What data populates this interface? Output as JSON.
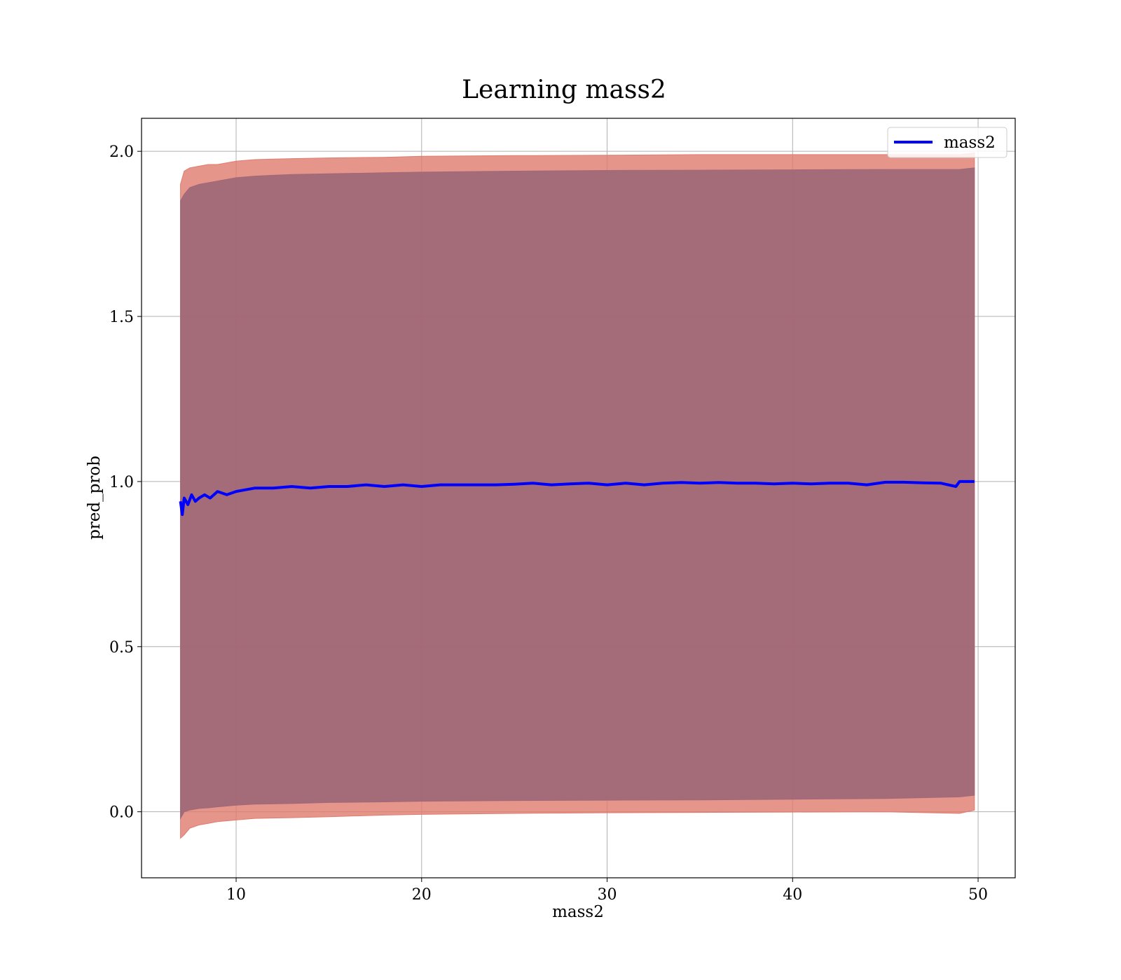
{
  "chart_data": {
    "type": "line",
    "title": "Learning mass2",
    "xlabel": "mass2",
    "ylabel": "pred_prob",
    "xlim": [
      4.9,
      52
    ],
    "ylim": [
      -0.2,
      2.1
    ],
    "x_ticks": [
      10,
      20,
      30,
      40,
      50
    ],
    "x_tick_labels": [
      "10",
      "20",
      "30",
      "40",
      "50"
    ],
    "y_ticks": [
      0.0,
      0.5,
      1.0,
      1.5,
      2.0
    ],
    "y_tick_labels": [
      "0.0",
      "0.5",
      "1.0",
      "1.5",
      "2.0"
    ],
    "grid": true,
    "legend": {
      "position": "top-right",
      "entries": [
        "mass2"
      ]
    },
    "series": [
      {
        "name": "mass2",
        "color": "#0000ff",
        "x": [
          7.0,
          7.1,
          7.2,
          7.4,
          7.6,
          7.8,
          8.0,
          8.3,
          8.6,
          9.0,
          9.5,
          10.0,
          10.5,
          11.0,
          12.0,
          13.0,
          14.0,
          15.0,
          16.0,
          17.0,
          18.0,
          19.0,
          20.0,
          21.0,
          22.0,
          23.0,
          24.0,
          25.0,
          26.0,
          27.0,
          28.0,
          29.0,
          30.0,
          31.0,
          32.0,
          33.0,
          34.0,
          35.0,
          36.0,
          37.0,
          38.0,
          39.0,
          40.0,
          41.0,
          42.0,
          43.0,
          44.0,
          45.0,
          46.0,
          47.0,
          48.0,
          48.8,
          49.0,
          49.8
        ],
        "values": [
          0.94,
          0.9,
          0.95,
          0.93,
          0.96,
          0.94,
          0.95,
          0.96,
          0.95,
          0.97,
          0.96,
          0.97,
          0.975,
          0.98,
          0.98,
          0.985,
          0.98,
          0.985,
          0.985,
          0.99,
          0.985,
          0.99,
          0.985,
          0.99,
          0.99,
          0.99,
          0.99,
          0.992,
          0.995,
          0.99,
          0.993,
          0.995,
          0.99,
          0.995,
          0.99,
          0.995,
          0.997,
          0.995,
          0.997,
          0.995,
          0.995,
          0.993,
          0.995,
          0.993,
          0.995,
          0.995,
          0.99,
          0.998,
          0.998,
          0.996,
          0.995,
          0.985,
          1.0,
          1.0
        ]
      }
    ],
    "bands": [
      {
        "color": "#e07b6e",
        "x": [
          7.0,
          7.2,
          7.5,
          8.0,
          8.5,
          9.0,
          10.0,
          11.0,
          13.0,
          15.0,
          18.0,
          20.0,
          25.0,
          30.0,
          35.0,
          40.0,
          45.0,
          49.0,
          49.8
        ],
        "upper": [
          1.9,
          1.94,
          1.95,
          1.955,
          1.96,
          1.96,
          1.97,
          1.975,
          1.978,
          1.98,
          1.982,
          1.985,
          1.987,
          1.988,
          1.99,
          1.99,
          1.99,
          1.99,
          1.995
        ],
        "lower": [
          -0.08,
          -0.07,
          -0.05,
          -0.04,
          -0.035,
          -0.03,
          -0.025,
          -0.02,
          -0.018,
          -0.015,
          -0.01,
          -0.008,
          -0.005,
          -0.003,
          -0.002,
          -0.001,
          0.0,
          -0.005,
          0.005
        ]
      },
      {
        "color": "#a06878",
        "x": [
          7.0,
          7.2,
          7.5,
          8.0,
          8.5,
          9.0,
          10.0,
          11.0,
          13.0,
          15.0,
          18.0,
          20.0,
          25.0,
          30.0,
          35.0,
          40.0,
          45.0,
          49.0,
          49.8
        ],
        "upper": [
          1.85,
          1.87,
          1.89,
          1.9,
          1.905,
          1.91,
          1.92,
          1.925,
          1.93,
          1.932,
          1.935,
          1.937,
          1.94,
          1.942,
          1.943,
          1.944,
          1.945,
          1.945,
          1.95
        ],
        "lower": [
          -0.02,
          0.0,
          0.005,
          0.01,
          0.012,
          0.015,
          0.02,
          0.023,
          0.025,
          0.028,
          0.03,
          0.032,
          0.034,
          0.035,
          0.036,
          0.038,
          0.04,
          0.045,
          0.05
        ]
      }
    ]
  }
}
